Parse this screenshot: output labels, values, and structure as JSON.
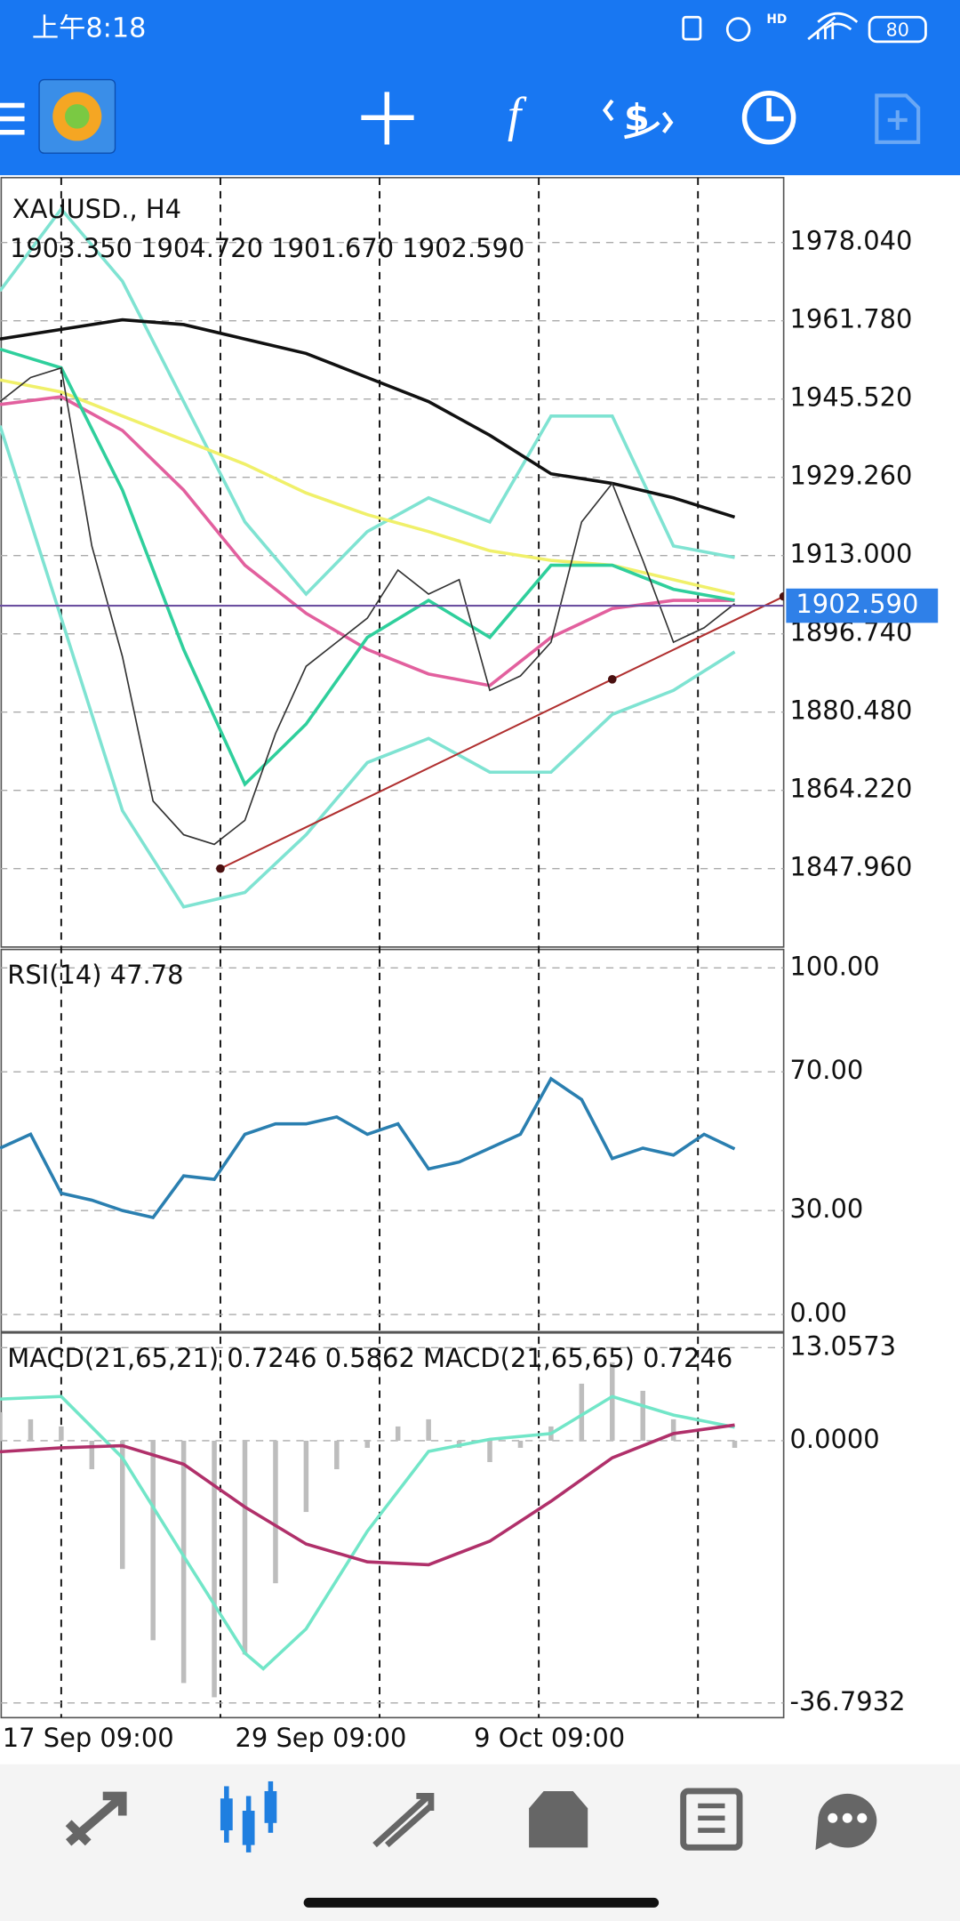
{
  "status_bar": {
    "time": "上午8:18",
    "network": "HD",
    "battery": "80"
  },
  "chart_data": [
    {
      "type": "line",
      "title": "XAUUSD., H4",
      "subtitle": "1903.350 1904.720 1901.670 1902.590",
      "xlim": [
        0,
        128
      ],
      "ylim": [
        1831.67,
        1991.53
      ],
      "yticks": [
        {
          "value": 1978.04,
          "label": "1978.040"
        },
        {
          "value": 1961.78,
          "label": "1961.780"
        },
        {
          "value": 1945.52,
          "label": "1945.520"
        },
        {
          "value": 1929.26,
          "label": "1929.260"
        },
        {
          "value": 1913,
          "label": "1913.000"
        },
        {
          "value": 1896.74,
          "label": "1896.740"
        },
        {
          "value": 1880.48,
          "label": "1880.480"
        },
        {
          "value": 1864.22,
          "label": "1864.220"
        },
        {
          "value": 1847.96,
          "label": "1847.960"
        }
      ],
      "xticks": [
        {
          "value": 0,
          "label": "17 Sep 09:00"
        },
        {
          "value": 38,
          "label": "29 Sep 09:00"
        },
        {
          "value": 77,
          "label": "9 Oct 09:00"
        }
      ],
      "separators": [
        10,
        36,
        62,
        88,
        114
      ],
      "current_price": {
        "value": 1902.59,
        "label": "1902.590",
        "color": "#6b4fa0"
      },
      "trendline": {
        "color": "#b03030",
        "x": [
          36,
          100,
          128
        ],
        "values": [
          1847.96,
          1887.3,
          1904.5
        ]
      },
      "grid": true,
      "series": [
        {
          "color": "#7fe3d2",
          "x": [
            0,
            10,
            20,
            30,
            40,
            50,
            60,
            70,
            80,
            90,
            100,
            110,
            120
          ],
          "values": [
            1968,
            1985,
            1970,
            1945,
            1920,
            1905,
            1918,
            1925,
            1920,
            1942,
            1942,
            1915,
            1912.6
          ]
        },
        {
          "color": "#7fe3d2",
          "x": [
            0,
            10,
            20,
            30,
            40,
            50,
            60,
            70,
            80,
            90,
            100,
            110,
            120
          ],
          "values": [
            1940,
            1900,
            1860,
            1840,
            1843,
            1855,
            1870,
            1875,
            1868,
            1868,
            1880,
            1885,
            1893
          ]
        },
        {
          "color": "#111111",
          "x": [
            0,
            10,
            20,
            30,
            40,
            50,
            60,
            70,
            80,
            90,
            100,
            110,
            120
          ],
          "values": [
            1958,
            1960,
            1962,
            1961,
            1958,
            1955,
            1950,
            1945,
            1938,
            1930,
            1928,
            1925,
            1921
          ]
        },
        {
          "color": "#f0f06a",
          "x": [
            0,
            10,
            20,
            30,
            40,
            50,
            60,
            70,
            80,
            90,
            100,
            110,
            120
          ],
          "values": [
            1949.5,
            1947,
            1942,
            1937,
            1932,
            1926,
            1921.5,
            1918,
            1914,
            1912,
            1911,
            1908,
            1905
          ]
        },
        {
          "color": "#e2609e",
          "x": [
            0,
            10,
            20,
            30,
            40,
            50,
            60,
            70,
            80,
            90,
            100,
            110,
            120
          ],
          "values": [
            1944.4,
            1946,
            1939,
            1926.6,
            1911,
            1901,
            1893.5,
            1888.4,
            1886,
            1896,
            1902,
            1903.7,
            1903.7
          ]
        },
        {
          "color": "#2fcf9c",
          "x": [
            0,
            10,
            20,
            30,
            40,
            50,
            60,
            70,
            80,
            90,
            100,
            110,
            120
          ],
          "values": [
            1955.9,
            1952,
            1926.6,
            1893.5,
            1865.5,
            1878,
            1896,
            1903.7,
            1896,
            1911,
            1911,
            1906,
            1903.7
          ]
        },
        {
          "color": "#333333",
          "x": [
            0,
            5,
            10,
            15,
            20,
            25,
            30,
            35,
            40,
            45,
            50,
            55,
            60,
            65,
            70,
            75,
            80,
            85,
            90,
            95,
            100,
            105,
            110,
            115,
            120
          ],
          "values": [
            1945,
            1950,
            1952,
            1915,
            1892,
            1862,
            1855,
            1853,
            1858,
            1876,
            1890,
            1895,
            1900,
            1910,
            1905,
            1908,
            1885,
            1888,
            1895,
            1920,
            1928,
            1912,
            1895,
            1898,
            1903
          ]
        }
      ]
    },
    {
      "type": "line",
      "title": "RSI(14) 47.78",
      "xlim": [
        0,
        128
      ],
      "ylim": [
        0,
        100
      ],
      "yticks": [
        {
          "value": 100,
          "label": "100.00"
        },
        {
          "value": 70,
          "label": "70.00"
        },
        {
          "value": 30,
          "label": "30.00"
        },
        {
          "value": 0,
          "label": "0.00"
        }
      ],
      "grid": true,
      "series": [
        {
          "color": "#2a7fb0",
          "x": [
            0,
            5,
            10,
            15,
            20,
            25,
            30,
            35,
            40,
            45,
            50,
            55,
            60,
            65,
            70,
            75,
            80,
            85,
            90,
            95,
            100,
            105,
            110,
            115,
            120
          ],
          "values": [
            48,
            52,
            35,
            33,
            30,
            28,
            40,
            39,
            52,
            55,
            55,
            57,
            52,
            55,
            42,
            44,
            48,
            52,
            68,
            62,
            45,
            48,
            46,
            52,
            47.78
          ]
        }
      ]
    },
    {
      "type": "line",
      "title": "MACD(21,65,21) 0.7246 0.5862 MACD(21,65,65) 0.7246",
      "xlim": [
        0,
        128
      ],
      "ylim": [
        -36.7932,
        13.0573
      ],
      "yticks": [
        {
          "value": 13.0573,
          "label": "13.0573"
        },
        {
          "value": 0,
          "label": "0.0000"
        },
        {
          "value": -36.7932,
          "label": "-36.7932"
        }
      ],
      "grid": true,
      "series": [
        {
          "type": "bar",
          "color": "#bdbdbd",
          "x": [
            0,
            5,
            10,
            15,
            20,
            25,
            30,
            35,
            40,
            45,
            50,
            55,
            60,
            65,
            70,
            75,
            80,
            85,
            90,
            95,
            100,
            105,
            110,
            115,
            120
          ],
          "values": [
            4,
            3,
            2,
            -4,
            -18,
            -28,
            -34,
            -36,
            -30,
            -20,
            -10,
            -4,
            -1,
            2,
            3,
            -1,
            -3,
            -1,
            2,
            8,
            11,
            7,
            3,
            0,
            -1
          ]
        },
        {
          "type": "line",
          "color": "#72e6c8",
          "x": [
            0,
            10,
            20,
            30,
            40,
            43,
            50,
            60,
            70,
            80,
            90,
            100,
            110,
            120
          ],
          "values": [
            5.84,
            6.2,
            -2.4,
            -16.2,
            -29.8,
            -32,
            -26.4,
            -12.7,
            -1.5,
            0.2,
            1,
            6.2,
            3.6,
            1.9
          ]
        },
        {
          "type": "line",
          "color": "#b0306a",
          "x": [
            0,
            10,
            20,
            30,
            40,
            50,
            60,
            70,
            80,
            90,
            100,
            110,
            120
          ],
          "values": [
            -1.55,
            -1,
            -0.7,
            -3.3,
            -9.3,
            -14.5,
            -17,
            -17.4,
            -14.1,
            -8.5,
            -2.4,
            1,
            2.2
          ]
        }
      ]
    }
  ]
}
